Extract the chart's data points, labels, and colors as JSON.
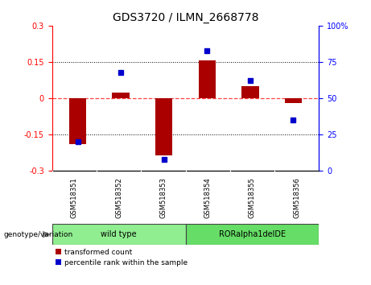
{
  "title": "GDS3720 / ILMN_2668778",
  "samples": [
    "GSM518351",
    "GSM518352",
    "GSM518353",
    "GSM518354",
    "GSM518355",
    "GSM518356"
  ],
  "transformed_count": [
    -0.19,
    0.025,
    -0.235,
    0.155,
    0.05,
    -0.018
  ],
  "percentile_rank": [
    20,
    68,
    8,
    83,
    62,
    35
  ],
  "groups": [
    {
      "label": "wild type",
      "span": [
        0,
        3
      ],
      "color": "#90EE90"
    },
    {
      "label": "RORalpha1delDE",
      "span": [
        3,
        6
      ],
      "color": "#66DD66"
    }
  ],
  "genotype_label": "genotype/variation",
  "ylim_left": [
    -0.3,
    0.3
  ],
  "ylim_right": [
    0,
    100
  ],
  "yticks_left": [
    -0.3,
    -0.15,
    0.0,
    0.15,
    0.3
  ],
  "yticks_right": [
    0,
    25,
    50,
    75,
    100
  ],
  "bar_color": "#AA0000",
  "dot_color": "#0000CC",
  "zero_line_color": "#FF4444",
  "bg_plot": "#FFFFFF",
  "bg_xtick": "#C8C8C8",
  "legend_red_label": "transformed count",
  "legend_blue_label": "percentile rank within the sample",
  "title_fontsize": 10,
  "tick_fontsize": 7,
  "label_fontsize": 7
}
